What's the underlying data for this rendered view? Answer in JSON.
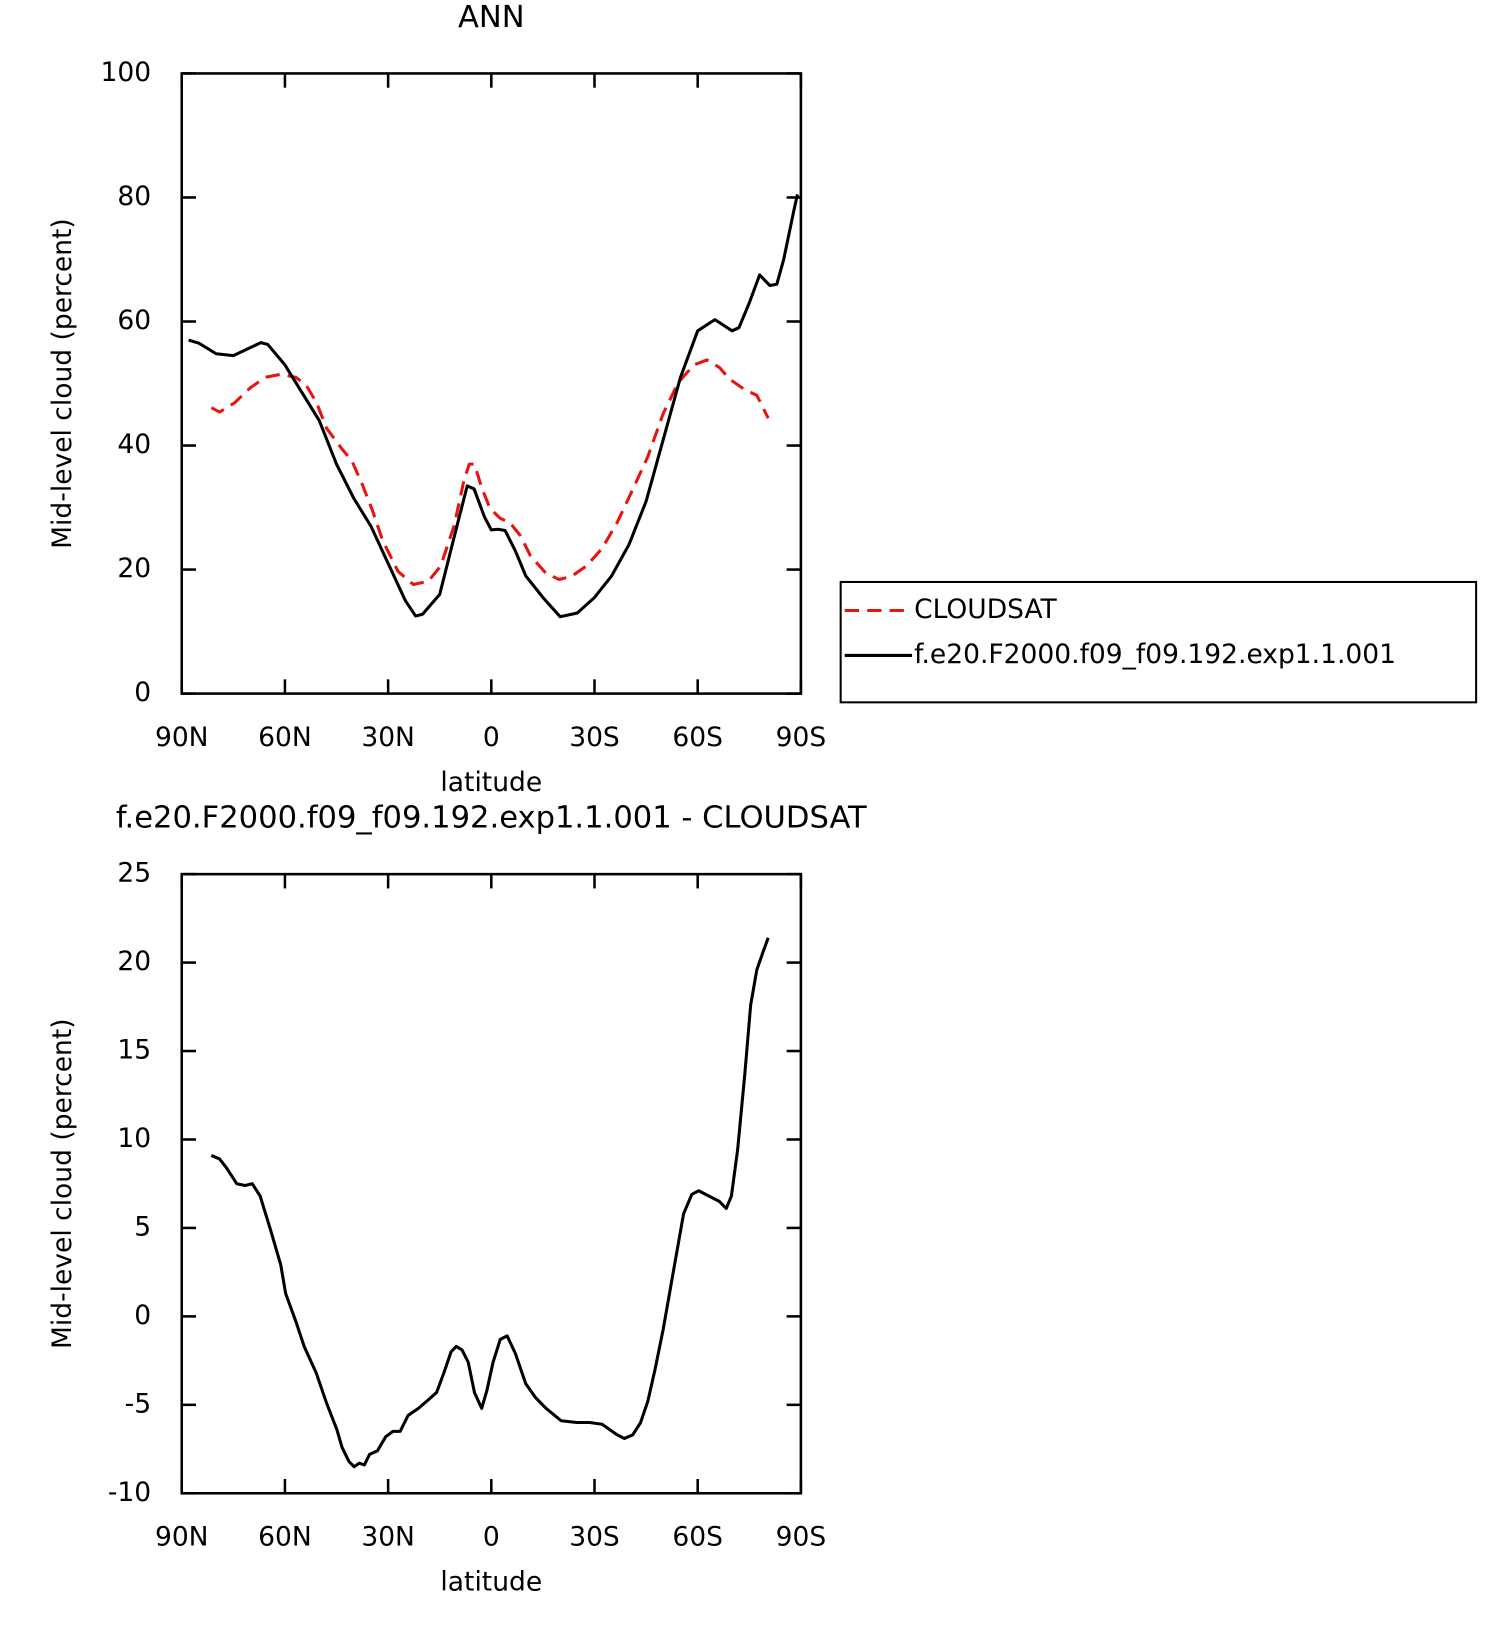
{
  "chart_data": [
    {
      "type": "line",
      "title": "ANN",
      "x_label": "latitude",
      "y_label": "Mid-level cloud (percent)",
      "xlim": [
        90,
        -90
      ],
      "xticks": [
        {
          "value": 90,
          "label": "90N"
        },
        {
          "value": 60,
          "label": "60N"
        },
        {
          "value": 30,
          "label": "30N"
        },
        0,
        {
          "value": -30,
          "label": "30S"
        },
        {
          "value": -60,
          "label": "60S"
        },
        {
          "value": -90,
          "label": "90S"
        }
      ],
      "ylim": [
        0,
        100
      ],
      "yticks": [
        0,
        20,
        40,
        60,
        80,
        100
      ],
      "legend": "right",
      "series": [
        {
          "name": "CLOUDSAT",
          "color": "#e8140f",
          "line_style": "dashed",
          "x": [
            81.4,
            79,
            74.6,
            70.1,
            65.7,
            61.2,
            56.8,
            53.8,
            50.8,
            47.9,
            43.5,
            40.5,
            37.5,
            34.6,
            31.6,
            27.1,
            22.7,
            18.3,
            14.7,
            10.8,
            7.9,
            6.4,
            4.9,
            2.8,
            0.4,
            -2.5,
            -5.5,
            -8.4,
            -11.4,
            -15.9,
            -19.7,
            -23.3,
            -27.7,
            -32.2,
            -36.6,
            -41.1,
            -45.5,
            -50,
            -54.4,
            -58.9,
            -62.7,
            -66.3,
            -69.3,
            -73.7,
            -77.2,
            -80.5
          ],
          "values": [
            46.1,
            45.4,
            46.9,
            49.3,
            51,
            51.5,
            51,
            49.7,
            46.9,
            42.8,
            39.5,
            37.5,
            33.7,
            29.6,
            24.7,
            19.7,
            17.6,
            18.1,
            20.6,
            27.1,
            34.5,
            37,
            37,
            33.2,
            29.9,
            28.3,
            27.5,
            25.5,
            22.2,
            19.4,
            18.4,
            18.9,
            20.6,
            23.4,
            27.6,
            32.9,
            38.2,
            45.2,
            50.2,
            53,
            53.8,
            52.6,
            50.7,
            49,
            48.1,
            44.4
          ]
        },
        {
          "name": "f.e20.F2000.f09_f09.192.exp1.1.001",
          "color": "#000000",
          "line_style": "solid",
          "x": [
            88,
            85,
            80,
            75,
            70,
            67,
            65,
            60,
            55,
            50,
            45,
            40,
            35,
            30,
            25,
            22,
            20,
            15,
            10,
            7,
            5,
            2,
            0,
            -2,
            -4,
            -7,
            -10,
            -15,
            -20,
            -25,
            -30,
            -35,
            -40,
            -45,
            -50,
            -55,
            -60,
            -65,
            -70,
            -72,
            -75,
            -78,
            -81,
            -83,
            -85,
            -88,
            -89
          ],
          "values": [
            57,
            56.5,
            54.8,
            54.5,
            55.8,
            56.6,
            56.3,
            53,
            48.5,
            44,
            37,
            31.5,
            27,
            21,
            15,
            12.5,
            12.8,
            16,
            27,
            33.5,
            33,
            28.5,
            26.4,
            26.5,
            26.3,
            23,
            19,
            15.5,
            12.4,
            13,
            15.5,
            19,
            24,
            31,
            41,
            51,
            58.5,
            60.3,
            58.5,
            59,
            63,
            67.5,
            65.8,
            66,
            70,
            78,
            80.5
          ]
        }
      ]
    },
    {
      "type": "line",
      "title": "f.e20.F2000.f09_f09.192.exp1.1.001 - CLOUDSAT",
      "x_label": "latitude",
      "y_label": "Mid-level cloud (percent)",
      "xlim": [
        90,
        -90
      ],
      "xticks": [
        {
          "value": 90,
          "label": "90N"
        },
        {
          "value": 60,
          "label": "60N"
        },
        {
          "value": 30,
          "label": "30N"
        },
        0,
        {
          "value": -30,
          "label": "30S"
        },
        {
          "value": -60,
          "label": "60S"
        },
        {
          "value": -90,
          "label": "90S"
        }
      ],
      "ylim": [
        -10,
        25
      ],
      "yticks": [
        -10,
        -5,
        0,
        5,
        10,
        15,
        20,
        25
      ],
      "series": [
        {
          "color": "#000000",
          "line_style": "solid",
          "x": [
            81.4,
            79,
            77,
            74,
            71.6,
            69.5,
            67.2,
            64.2,
            61.2,
            59.8,
            56.8,
            54.4,
            50.9,
            47.9,
            44.9,
            43.4,
            41.4,
            39.9,
            38.4,
            36.9,
            35.4,
            33.1,
            30.7,
            28.6,
            26.5,
            24.2,
            21.2,
            18.2,
            15.9,
            13.8,
            11.7,
            10.2,
            8.5,
            6.7,
            4.9,
            2.8,
            1.3,
            -0.5,
            -2.6,
            -4.6,
            -7,
            -10,
            -12.9,
            -15.9,
            -20.3,
            -24.8,
            -28.6,
            -32.2,
            -36.6,
            -38.7,
            -41.1,
            -43.4,
            -45.5,
            -47.6,
            -50,
            -52.9,
            -55.9,
            -58.3,
            -60.3,
            -63.3,
            -66.3,
            -68.3,
            -69.8,
            -71.6,
            -73.7,
            -75.4,
            -77.2,
            -79,
            -80.5
          ],
          "values": [
            9.1,
            8.9,
            8.4,
            7.5,
            7.4,
            7.5,
            6.8,
            4.9,
            2.9,
            1.3,
            -0.3,
            -1.7,
            -3.2,
            -4.9,
            -6.4,
            -7.4,
            -8.2,
            -8.5,
            -8.3,
            -8.4,
            -7.8,
            -7.6,
            -6.8,
            -6.5,
            -6.5,
            -5.6,
            -5.2,
            -4.7,
            -4.3,
            -3.2,
            -2,
            -1.7,
            -1.9,
            -2.6,
            -4.3,
            -5.2,
            -4.2,
            -2.6,
            -1.3,
            -1.1,
            -2.1,
            -3.8,
            -4.6,
            -5.2,
            -5.9,
            -6,
            -6,
            -6.1,
            -6.7,
            -6.9,
            -6.7,
            -6,
            -4.8,
            -3,
            -0.7,
            2.5,
            5.8,
            6.9,
            7.1,
            6.8,
            6.5,
            6.1,
            6.8,
            9.4,
            13.7,
            17.6,
            19.6,
            20.6,
            21.4
          ]
        }
      ]
    }
  ]
}
